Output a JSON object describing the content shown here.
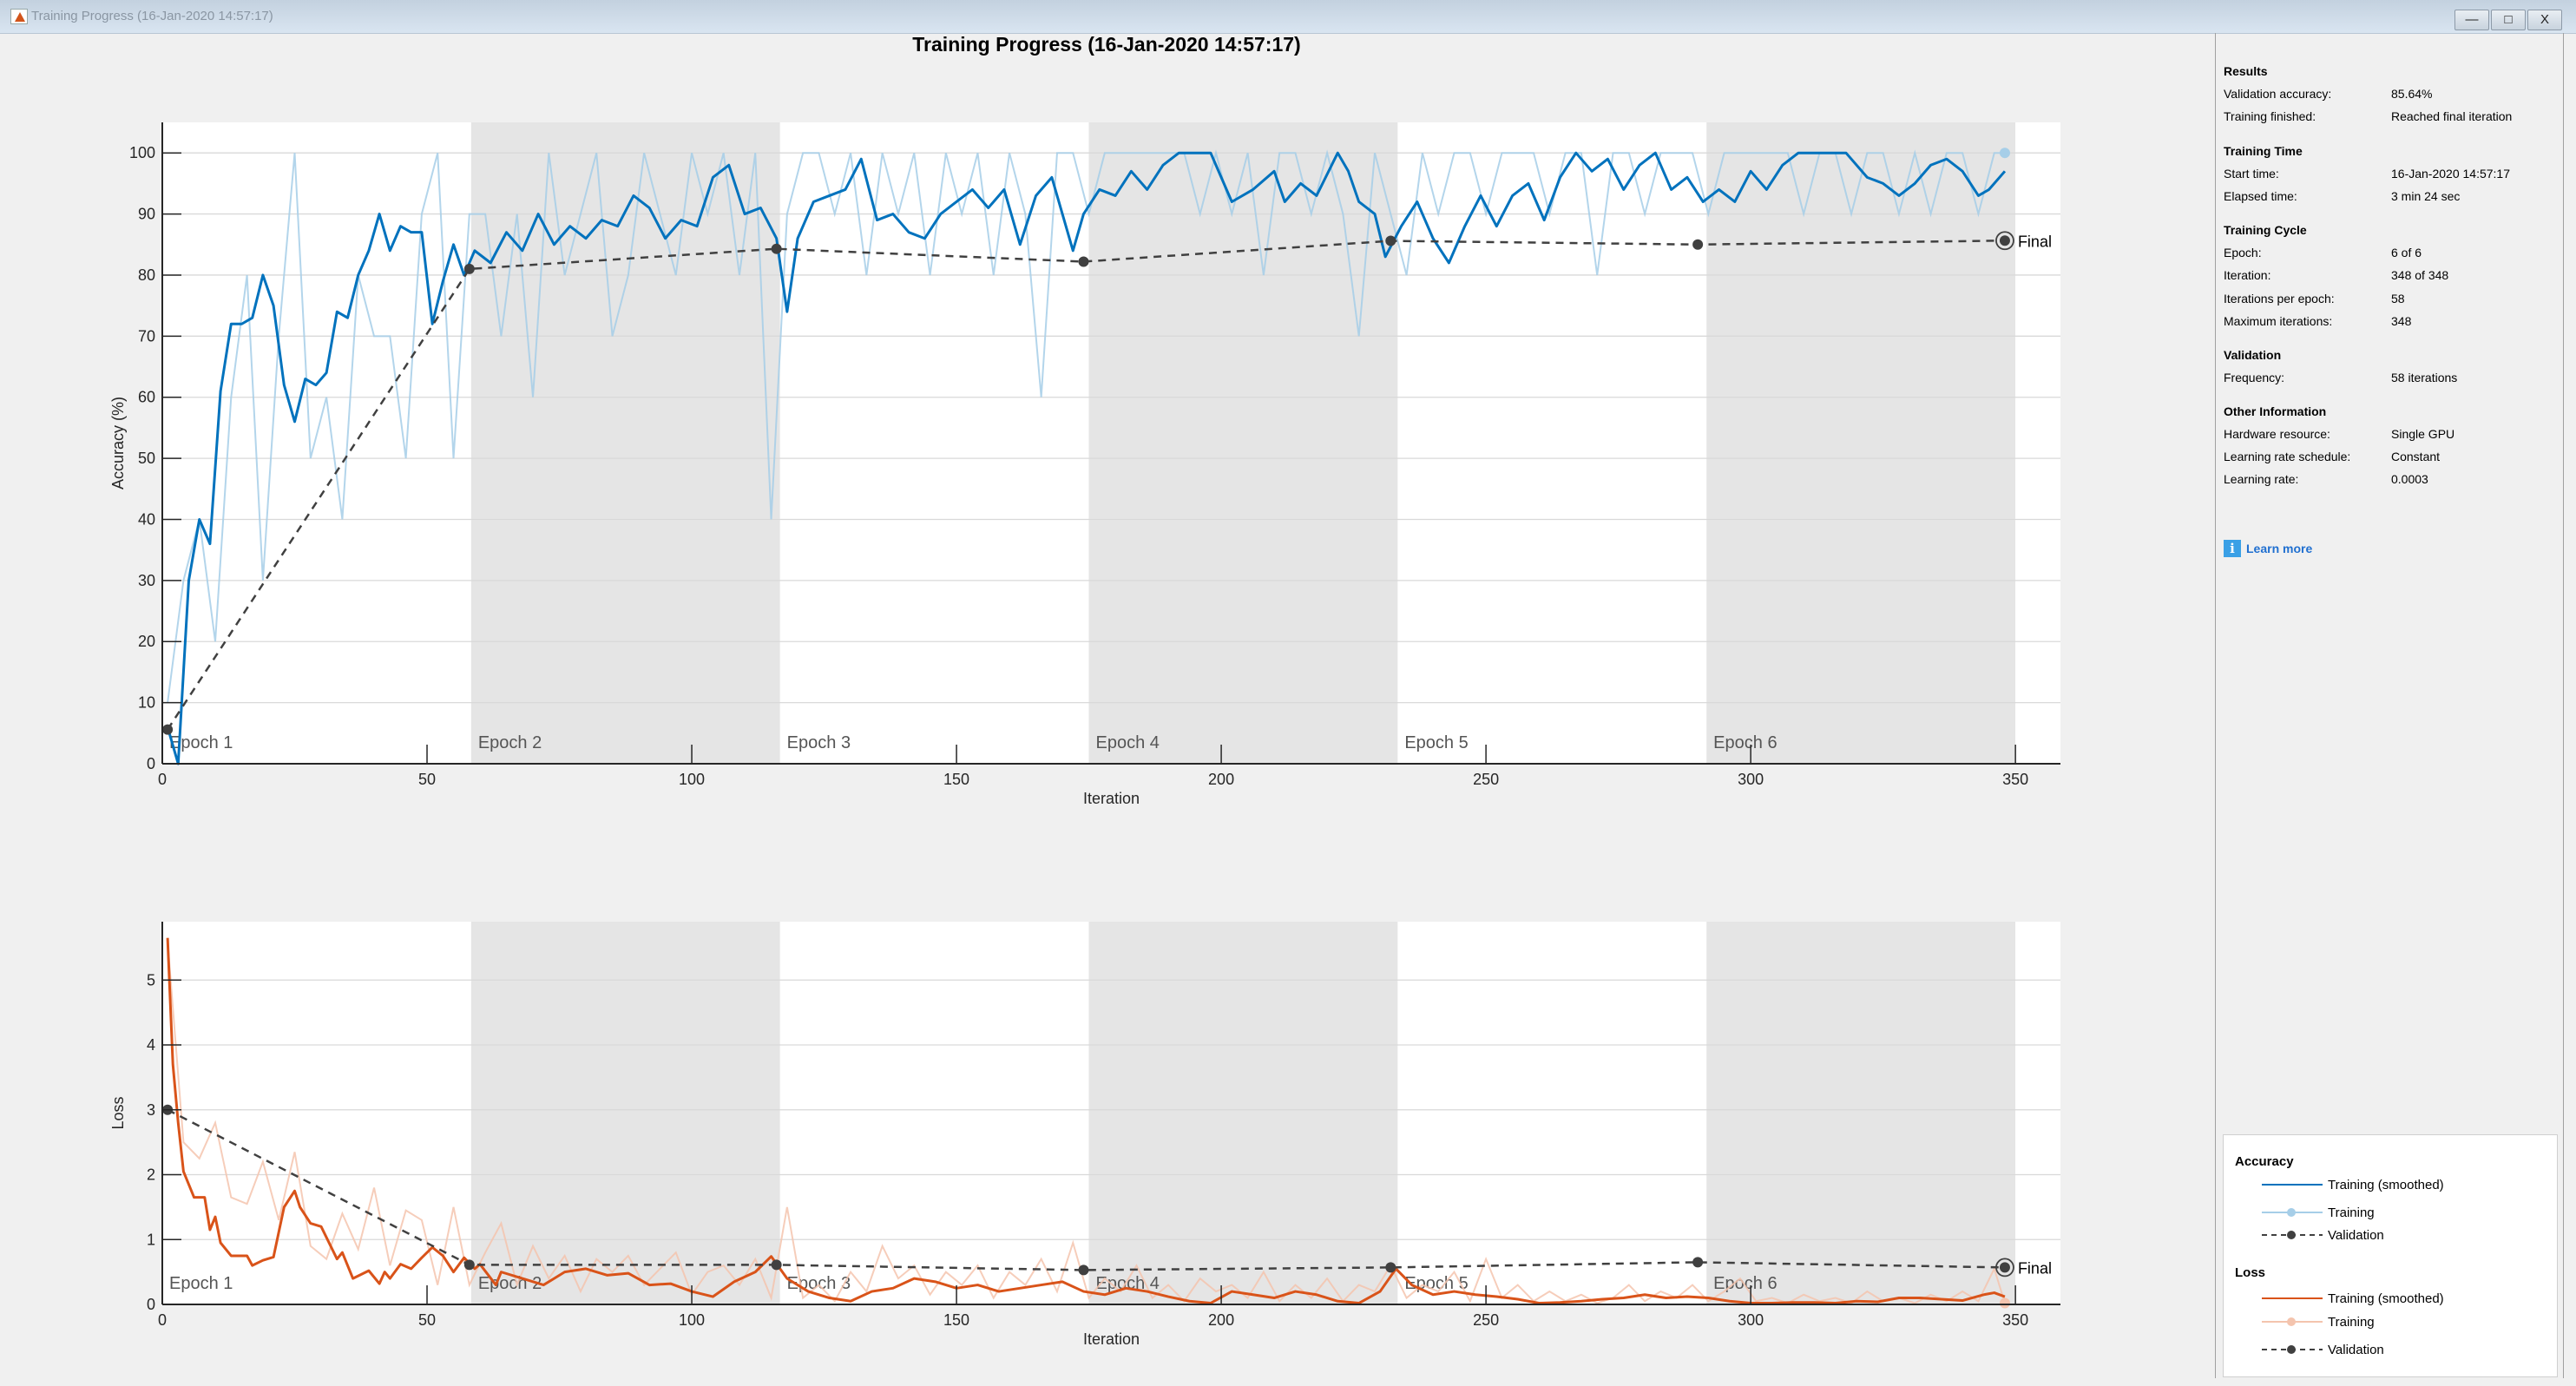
{
  "window": {
    "title": "Training Progress (16-Jan-2020 14:57:17)",
    "buttons": {
      "minimize": "—",
      "maximize": "□",
      "close": "X"
    }
  },
  "chart_title": "Training Progress (16-Jan-2020 14:57:17)",
  "colors": {
    "acc_smoothed": "#0072bd",
    "acc_raw": "#a6cee8",
    "loss_smoothed": "#d95319",
    "loss_raw": "#f4c4ae",
    "validation": "#404040",
    "band": "#e5e5e5"
  },
  "info": {
    "sections": [
      {
        "title": "Results",
        "rows": [
          [
            "Validation accuracy:",
            "85.64%"
          ],
          [
            "Training finished:",
            "Reached final iteration"
          ]
        ]
      },
      {
        "title": "Training Time",
        "rows": [
          [
            "Start time:",
            "16-Jan-2020 14:57:17"
          ],
          [
            "Elapsed time:",
            "3 min 24 sec"
          ]
        ]
      },
      {
        "title": "Training Cycle",
        "rows": [
          [
            "Epoch:",
            "6 of 6"
          ],
          [
            "Iteration:",
            "348 of 348"
          ],
          [
            "Iterations per epoch:",
            "58"
          ],
          [
            "Maximum iterations:",
            "348"
          ]
        ]
      },
      {
        "title": "Validation",
        "rows": [
          [
            "Frequency:",
            "58 iterations"
          ]
        ]
      },
      {
        "title": "Other Information",
        "rows": [
          [
            "Hardware resource:",
            "Single GPU"
          ],
          [
            "Learning rate schedule:",
            "Constant"
          ],
          [
            "Learning rate:",
            "0.0003"
          ]
        ]
      }
    ],
    "learn_more": "Learn more",
    "learn_more_icon": "i"
  },
  "legend": {
    "accuracy_title": "Accuracy",
    "loss_title": "Loss",
    "smoothed": "Training (smoothed)",
    "training": "Training",
    "validation": "Validation"
  },
  "chart_data": [
    {
      "type": "line",
      "name": "accuracy",
      "xlabel": "Iteration",
      "ylabel": "Accuracy (%)",
      "xlim": [
        0,
        358.5
      ],
      "ylim": [
        0,
        105
      ],
      "xticks": [
        0,
        50,
        100,
        150,
        200,
        250,
        300,
        350
      ],
      "yticks": [
        0,
        10,
        20,
        30,
        40,
        50,
        60,
        70,
        80,
        90,
        100
      ],
      "grid": "horizontal",
      "epoch_labels": [
        "Epoch 1",
        "Epoch 2",
        "Epoch 3",
        "Epoch 4",
        "Epoch 5",
        "Epoch 6"
      ],
      "epoch_length": 58.33,
      "final_label": "Final",
      "smoothed": {
        "x": [
          1,
          3,
          5,
          7,
          9,
          11,
          13,
          15,
          17,
          19,
          21,
          23,
          25,
          27,
          29,
          31,
          33,
          35,
          37,
          39,
          41,
          43,
          45,
          47,
          49,
          51,
          53,
          55,
          57,
          59,
          62,
          65,
          68,
          71,
          74,
          77,
          80,
          83,
          86,
          89,
          92,
          95,
          98,
          101,
          104,
          107,
          110,
          113,
          116,
          118,
          120,
          123,
          126,
          129,
          132,
          135,
          138,
          141,
          144,
          147,
          150,
          153,
          156,
          159,
          162,
          165,
          168,
          170,
          172,
          174,
          177,
          180,
          183,
          186,
          189,
          192,
          198,
          202,
          206,
          210,
          212,
          215,
          218,
          222,
          224,
          226,
          229,
          231,
          234,
          237,
          240,
          243,
          246,
          249,
          252,
          255,
          258,
          261,
          264,
          267,
          270,
          273,
          276,
          279,
          282,
          285,
          288,
          291,
          294,
          297,
          300,
          303,
          306,
          309,
          312,
          318,
          322,
          325,
          328,
          331,
          334,
          337,
          340,
          343,
          345,
          348
        ],
        "y": [
          6,
          0,
          30,
          40,
          36,
          61,
          72,
          72,
          73,
          80,
          75,
          62,
          56,
          63,
          62,
          64,
          74,
          73,
          80,
          84,
          90,
          84,
          88,
          87,
          87,
          72,
          79,
          85,
          80,
          84,
          82,
          87,
          84,
          90,
          85,
          88,
          86,
          89,
          88,
          93,
          91,
          86,
          89,
          88,
          96,
          98,
          90,
          91,
          86,
          74,
          86,
          92,
          93,
          94,
          99,
          89,
          90,
          87,
          86,
          90,
          92,
          94,
          91,
          94,
          85,
          93,
          96,
          90,
          84,
          90,
          94,
          93,
          97,
          94,
          98,
          100,
          100,
          92,
          94,
          97,
          92,
          95,
          93,
          100,
          97,
          92,
          90,
          83,
          88,
          92,
          86,
          82,
          88,
          93,
          88,
          93,
          95,
          89,
          96,
          100,
          97,
          99,
          94,
          98,
          100,
          94,
          96,
          92,
          94,
          92,
          97,
          94,
          98,
          100,
          100,
          100,
          96,
          95,
          93,
          95,
          98,
          99,
          97,
          93,
          94,
          97
        ]
      },
      "training": {
        "x_start": 1,
        "x_step": 3,
        "y": [
          10,
          30,
          40,
          20,
          60,
          80,
          30,
          70,
          100,
          50,
          60,
          40,
          80,
          70,
          70,
          50,
          90,
          100,
          50,
          90,
          90,
          70,
          90,
          60,
          100,
          80,
          90,
          100,
          70,
          80,
          100,
          90,
          80,
          100,
          90,
          100,
          80,
          100,
          40,
          90,
          100,
          100,
          90,
          100,
          80,
          100,
          90,
          100,
          80,
          100,
          90,
          100,
          80,
          100,
          90,
          60,
          100,
          100,
          90,
          100,
          100,
          100,
          100,
          100,
          100,
          90,
          100,
          90,
          100,
          80,
          100,
          100,
          90,
          100,
          90,
          70,
          100,
          90,
          80,
          100,
          90,
          100,
          100,
          90,
          100,
          100,
          100,
          90,
          100,
          100,
          80,
          100,
          100,
          90,
          100,
          100,
          100,
          90,
          100,
          100,
          100,
          100,
          100,
          90,
          100,
          100,
          90,
          100,
          100,
          90,
          100,
          90,
          100,
          100,
          90,
          100
        ],
        "final": [
          348,
          100
        ]
      },
      "validation": {
        "x": [
          1,
          58,
          116,
          174,
          232,
          290,
          348
        ],
        "y": [
          5.6,
          81.0,
          84.3,
          82.2,
          85.6,
          85.0,
          85.64
        ]
      }
    },
    {
      "type": "line",
      "name": "loss",
      "xlabel": "Iteration",
      "ylabel": "Loss",
      "xlim": [
        0,
        358.5
      ],
      "ylim": [
        0,
        5.9
      ],
      "xticks": [
        0,
        50,
        100,
        150,
        200,
        250,
        300,
        350
      ],
      "yticks": [
        0,
        1,
        2,
        3,
        4,
        5
      ],
      "grid": "horizontal",
      "epoch_labels": [
        "Epoch 1",
        "Epoch 2",
        "Epoch 3",
        "Epoch 4",
        "Epoch 5",
        "Epoch 6"
      ],
      "epoch_length": 58.33,
      "final_label": "Final",
      "smoothed": {
        "x": [
          1,
          2,
          3,
          4,
          6,
          8,
          9,
          10,
          11,
          13,
          16,
          17,
          19,
          21,
          23,
          25,
          26,
          28,
          30,
          33,
          34,
          36,
          39,
          41,
          42,
          43,
          45,
          47,
          49,
          51,
          53,
          55,
          57,
          59,
          60,
          63,
          64,
          68,
          72,
          76,
          80,
          84,
          88,
          92,
          96,
          100,
          104,
          108,
          112,
          115,
          118,
          122,
          126,
          130,
          134,
          138,
          142,
          146,
          150,
          154,
          158,
          162,
          166,
          170,
          174,
          178,
          182,
          186,
          190,
          194,
          198,
          202,
          206,
          210,
          214,
          218,
          222,
          226,
          230,
          233,
          236,
          240,
          244,
          248,
          252,
          256,
          260,
          264,
          268,
          272,
          276,
          280,
          284,
          288,
          292,
          296,
          300,
          304,
          308,
          312,
          316,
          320,
          324,
          328,
          332,
          336,
          340,
          344,
          346,
          348
        ],
        "y": [
          5.65,
          3.7,
          2.8,
          2.05,
          1.65,
          1.65,
          1.15,
          1.35,
          0.95,
          0.75,
          0.75,
          0.6,
          0.68,
          0.73,
          1.5,
          1.75,
          1.5,
          1.25,
          1.2,
          0.7,
          0.8,
          0.4,
          0.52,
          0.32,
          0.5,
          0.4,
          0.62,
          0.55,
          0.72,
          0.88,
          0.75,
          0.5,
          0.72,
          0.55,
          0.62,
          0.3,
          0.5,
          0.4,
          0.3,
          0.5,
          0.55,
          0.45,
          0.48,
          0.3,
          0.32,
          0.2,
          0.12,
          0.35,
          0.5,
          0.74,
          0.4,
          0.2,
          0.1,
          0.05,
          0.2,
          0.25,
          0.4,
          0.35,
          0.25,
          0.3,
          0.2,
          0.25,
          0.3,
          0.35,
          0.2,
          0.15,
          0.25,
          0.2,
          0.12,
          0.05,
          0.02,
          0.2,
          0.15,
          0.1,
          0.2,
          0.15,
          0.05,
          0.02,
          0.2,
          0.55,
          0.3,
          0.15,
          0.2,
          0.15,
          0.12,
          0.08,
          0.02,
          0.03,
          0.05,
          0.08,
          0.1,
          0.15,
          0.1,
          0.12,
          0.1,
          0.05,
          0.02,
          0.02,
          0.03,
          0.03,
          0.02,
          0.05,
          0.04,
          0.1,
          0.1,
          0.08,
          0.06,
          0.15,
          0.18,
          0.12
        ]
      },
      "training": {
        "x_start": 1,
        "x_step": 3,
        "y": [
          5.6,
          2.5,
          2.25,
          2.8,
          1.65,
          1.55,
          2.2,
          1.3,
          2.35,
          0.9,
          0.7,
          1.4,
          0.85,
          1.8,
          0.6,
          1.45,
          1.3,
          0.3,
          1.5,
          0.3,
          0.8,
          1.25,
          0.3,
          0.9,
          0.4,
          0.75,
          0.2,
          0.7,
          0.5,
          0.75,
          0.3,
          0.55,
          0.8,
          0.15,
          0.5,
          0.6,
          0.3,
          0.7,
          0.1,
          1.5,
          0.1,
          0.3,
          0.05,
          0.5,
          0.2,
          0.9,
          0.4,
          0.6,
          0.15,
          0.5,
          0.3,
          0.6,
          0.1,
          0.5,
          0.3,
          0.7,
          0.2,
          0.95,
          0.1,
          0.4,
          0.2,
          0.6,
          0.1,
          0.3,
          0.05,
          0.4,
          0.2,
          0.3,
          0.1,
          0.5,
          0.05,
          0.3,
          0.1,
          0.4,
          0.05,
          0.3,
          0.2,
          0.6,
          0.1,
          0.3,
          0.2,
          0.5,
          0.05,
          0.7,
          0.1,
          0.3,
          0.05,
          0.2,
          0.05,
          0.15,
          0.02,
          0.1,
          0.3,
          0.05,
          0.2,
          0.1,
          0.3,
          0.05,
          0.2,
          0.4,
          0.05,
          0.1,
          0.02,
          0.15,
          0.05,
          0.1,
          0.02,
          0.2,
          0.05,
          0.1,
          0.02,
          0.15,
          0.05,
          0.2,
          0.05,
          0.55
        ],
        "final": [
          348,
          0.02
        ]
      },
      "validation": {
        "x": [
          1,
          58,
          116,
          174,
          232,
          290,
          348
        ],
        "y": [
          3.0,
          0.61,
          0.61,
          0.53,
          0.57,
          0.65,
          0.57
        ]
      }
    }
  ]
}
